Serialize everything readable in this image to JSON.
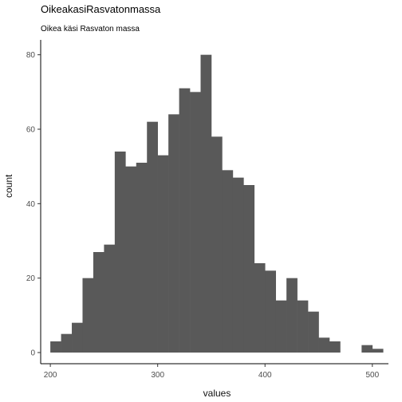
{
  "chart_data": {
    "type": "bar",
    "title": "OikeakasiRasvatonmassa",
    "subtitle": "Oikea käsi Rasvaton massa",
    "xlabel": "values",
    "ylabel": "count",
    "bin_width": 10,
    "bins": [
      {
        "start": 200,
        "end": 210,
        "count": 3
      },
      {
        "start": 210,
        "end": 220,
        "count": 5
      },
      {
        "start": 220,
        "end": 230,
        "count": 8
      },
      {
        "start": 230,
        "end": 240,
        "count": 20
      },
      {
        "start": 240,
        "end": 250,
        "count": 27
      },
      {
        "start": 250,
        "end": 260,
        "count": 29
      },
      {
        "start": 260,
        "end": 270,
        "count": 54
      },
      {
        "start": 270,
        "end": 280,
        "count": 50
      },
      {
        "start": 280,
        "end": 290,
        "count": 51
      },
      {
        "start": 290,
        "end": 300,
        "count": 62
      },
      {
        "start": 300,
        "end": 310,
        "count": 53
      },
      {
        "start": 310,
        "end": 320,
        "count": 64
      },
      {
        "start": 320,
        "end": 330,
        "count": 71
      },
      {
        "start": 330,
        "end": 340,
        "count": 70
      },
      {
        "start": 340,
        "end": 350,
        "count": 80
      },
      {
        "start": 350,
        "end": 360,
        "count": 58
      },
      {
        "start": 360,
        "end": 370,
        "count": 49
      },
      {
        "start": 370,
        "end": 380,
        "count": 47
      },
      {
        "start": 380,
        "end": 390,
        "count": 45
      },
      {
        "start": 390,
        "end": 400,
        "count": 24
      },
      {
        "start": 400,
        "end": 410,
        "count": 22
      },
      {
        "start": 410,
        "end": 420,
        "count": 14
      },
      {
        "start": 420,
        "end": 430,
        "count": 20
      },
      {
        "start": 430,
        "end": 440,
        "count": 14
      },
      {
        "start": 440,
        "end": 450,
        "count": 11
      },
      {
        "start": 450,
        "end": 460,
        "count": 4
      },
      {
        "start": 460,
        "end": 470,
        "count": 3
      },
      {
        "start": 470,
        "end": 480,
        "count": 0
      },
      {
        "start": 480,
        "end": 490,
        "count": 0
      },
      {
        "start": 490,
        "end": 500,
        "count": 2
      },
      {
        "start": 500,
        "end": 510,
        "count": 1
      }
    ],
    "xlim": [
      191,
      515
    ],
    "ylim": [
      -3,
      84
    ],
    "xticks": [
      200,
      300,
      400,
      500
    ],
    "yticks": [
      0,
      20,
      40,
      60,
      80
    ],
    "grid": false,
    "bar_color": "#595959",
    "axis_color": "#000000"
  }
}
